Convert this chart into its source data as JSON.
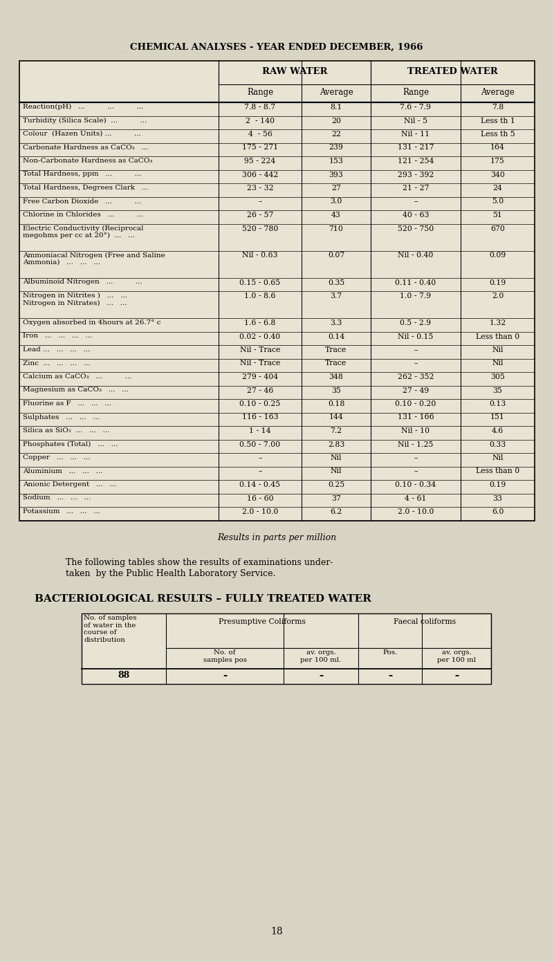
{
  "title": "CHEMICAL ANALYSES - YEAR ENDED DECEMBER, 1966",
  "bg_color": "#d8d4c4",
  "table_bg": "#e8e4d4",
  "main_rows": [
    [
      "Reaction(pH)   ...          ...          ...",
      "7.8 - 8.7",
      "8.1",
      "7.6 - 7.9",
      "7.8"
    ],
    [
      "Turbidity (Silica Scale)  ...          ...",
      "2  - 140",
      "20",
      "Nil - 5",
      "Less th 1"
    ],
    [
      "Colour  (Hazen Units) ...          ...",
      "4  - 56",
      "22",
      "Nil - 11",
      "Less th 5"
    ],
    [
      "Carbonate Hardness as CaCO₃   ...",
      "175 - 271",
      "239",
      "131 - 217",
      "164"
    ],
    [
      "Non-Carbonate Hardness as CaCO₃",
      "95 - 224",
      "153",
      "121 - 254",
      "175"
    ],
    [
      "Total Hardness, ppm   ...          ...",
      "306 - 442",
      "393",
      "293 - 392",
      "340"
    ],
    [
      "Total Hardness, Degrees Clark   ...",
      "23 - 32",
      "27",
      "21 - 27",
      "24"
    ],
    [
      "Free Carbon Dioxide   ...          ...",
      "–",
      "3.0",
      "–",
      "5.0"
    ],
    [
      "Chlorine in Chlorides   ...          ...",
      "26 - 57",
      "43",
      "40 - 63",
      "51"
    ],
    [
      "Electric Conductivity (Reciprocal\nmegohms per cc at 20°)  ...   ...",
      "520 - 780",
      "710",
      "520 - 750",
      "670"
    ],
    [
      "Ammoniacal Nitrogen (Free and Saline\nAmmonia)   ...   ...   ...",
      "Nil - 0.63",
      "0.07",
      "Nil - 0.40",
      "0.09"
    ],
    [
      "Albuminoid Nitrogen   ...          ...",
      "0.15 - 0.65",
      "0.35",
      "0.11 - 0.40",
      "0.19"
    ],
    [
      "Nitrogen in Nitrites )   ...   ...\nNitrogen in Nitrates)   ...   ...",
      "1.0 - 8.6",
      "3.7",
      "1.0 - 7.9",
      "2.0"
    ],
    [
      "Oxygen absorbed in 4hours at 26.7° c",
      "1.6 - 6.8",
      "3.3",
      "0.5 - 2.9",
      "1.32"
    ],
    [
      "Iron   ...   ...   ...   ...",
      "0.02 - 0.40",
      "0.14",
      "Nil - 0.15",
      "Less than 0"
    ],
    [
      "Lead ...   ...   ...   ...",
      "Nil - Trace",
      "Trace",
      "–",
      "Nil"
    ],
    [
      "Zinc  ...   ...   ...   ...",
      "Nil - Trace",
      "Trace",
      "–",
      "Nil"
    ],
    [
      "Calcium as CaCO₃   ...          ...",
      "279 - 404",
      "348",
      "262 - 352",
      "305"
    ],
    [
      "Magnesium as CaCO₃   ...   ...",
      "27 - 46",
      "35",
      "27 - 49",
      "35"
    ],
    [
      "Fluorine as F   ...   ...   ...",
      "0.10 - 0.25",
      "0.18",
      "0.10 - 0.20",
      "0.13"
    ],
    [
      "Sulphates   ...   ...   ...",
      "116 - 163",
      "144",
      "131 - 166",
      "151"
    ],
    [
      "Silica as SiO₂  ...   ...   ...",
      "1 - 14",
      "7.2",
      "Nil - 10",
      "4.6"
    ],
    [
      "Phosphates (Total)   ...   ...",
      "0.50 - 7.00",
      "2.83",
      "Nil - 1.25",
      "0.33"
    ],
    [
      "Copper   ...   ...   ...",
      "–",
      "Nil",
      "–",
      "Nil"
    ],
    [
      "Aluminium   ...   ...   ...",
      "–",
      "Nil",
      "–",
      "Less than 0"
    ],
    [
      "Anionic Detergent   ...   ...",
      "0.14 - 0.45",
      "0.25",
      "0.10 - 0.34",
      "0.19"
    ],
    [
      "Sodium   ...   ...   ...",
      "16 - 60",
      "37",
      "4 - 61",
      "33"
    ],
    [
      "Potassium   ...   ...   ...",
      "2.0 - 10.0",
      "6.2",
      "2.0 - 10.0",
      "6.0"
    ]
  ],
  "col_headers": [
    "Range",
    "Average",
    "Range",
    "Average"
  ],
  "group_headers": [
    "RAW WATER",
    "TREATED WATER"
  ],
  "footer_italic": "Results in parts per million",
  "para_line1": "The following tables show the results of examinations under-",
  "para_line2": "taken  by the Public Health Laboratory Service.",
  "bact_title": "BACTERIOLOGICAL RESULTS – FULLY TREATED WATER",
  "bact_data": [
    "88",
    "–",
    "–",
    "–",
    "–"
  ],
  "page_number": "18"
}
